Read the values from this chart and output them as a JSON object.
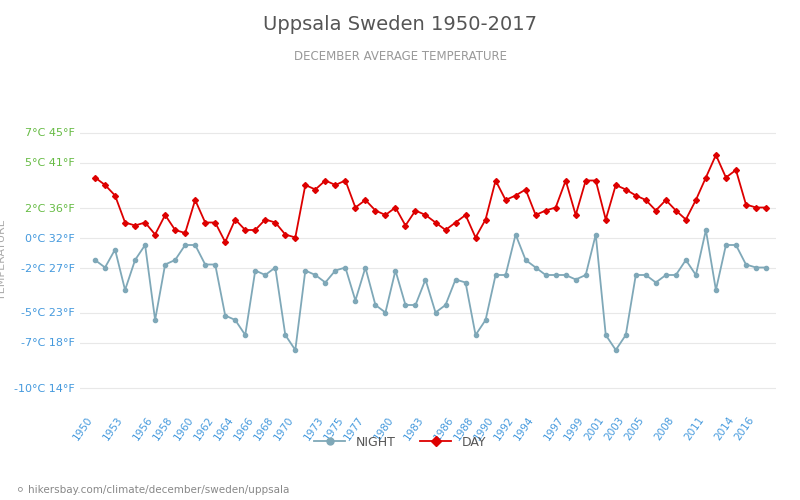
{
  "title": "Uppsala Sweden 1950-2017",
  "subtitle": "DECEMBER AVERAGE TEMPERATURE",
  "ylabel": "TEMPERATURE",
  "url_text": "hikersbay.com/climate/december/sweden/uppsala",
  "legend_night": "NIGHT",
  "legend_day": "DAY",
  "years": [
    1950,
    1951,
    1952,
    1953,
    1954,
    1955,
    1956,
    1957,
    1958,
    1959,
    1960,
    1961,
    1962,
    1963,
    1964,
    1965,
    1966,
    1967,
    1968,
    1969,
    1970,
    1971,
    1972,
    1973,
    1974,
    1975,
    1976,
    1977,
    1978,
    1979,
    1980,
    1981,
    1982,
    1983,
    1984,
    1985,
    1986,
    1987,
    1988,
    1989,
    1990,
    1991,
    1992,
    1993,
    1994,
    1995,
    1996,
    1997,
    1998,
    1999,
    2000,
    2001,
    2002,
    2003,
    2004,
    2005,
    2006,
    2007,
    2008,
    2009,
    2010,
    2011,
    2012,
    2013,
    2014,
    2015,
    2016,
    2017
  ],
  "day_temps": [
    4.0,
    3.5,
    2.8,
    1.0,
    0.8,
    1.0,
    0.2,
    1.5,
    0.5,
    0.3,
    2.5,
    1.0,
    1.0,
    -0.3,
    1.2,
    0.5,
    0.5,
    1.2,
    1.0,
    0.2,
    0.0,
    3.5,
    3.2,
    3.8,
    3.5,
    3.8,
    2.0,
    2.5,
    1.8,
    1.5,
    2.0,
    0.8,
    1.8,
    1.5,
    1.0,
    0.5,
    1.0,
    1.5,
    0.0,
    1.2,
    3.8,
    2.5,
    2.8,
    3.2,
    1.5,
    1.8,
    2.0,
    3.8,
    1.5,
    3.8,
    3.8,
    1.2,
    3.5,
    3.2,
    2.8,
    2.5,
    1.8,
    2.5,
    1.8,
    1.2,
    2.5,
    4.0,
    5.5,
    4.0,
    4.5,
    2.2,
    2.0,
    2.0
  ],
  "night_temps": [
    -1.5,
    -2.0,
    -0.8,
    -3.5,
    -1.5,
    -0.5,
    -5.5,
    -1.8,
    -1.5,
    -0.5,
    -0.5,
    -1.8,
    -1.8,
    -5.2,
    -5.5,
    -6.5,
    -2.2,
    -2.5,
    -2.0,
    -6.5,
    -7.5,
    -2.2,
    -2.5,
    -3.0,
    -2.2,
    -2.0,
    -4.2,
    -2.0,
    -4.5,
    -5.0,
    -2.2,
    -4.5,
    -4.5,
    -2.8,
    -5.0,
    -4.5,
    -2.8,
    -3.0,
    -6.5,
    -5.5,
    -2.5,
    -2.5,
    0.2,
    -1.5,
    -2.0,
    -2.5,
    -2.5,
    -2.5,
    -2.8,
    -2.5,
    0.2,
    -6.5,
    -7.5,
    -6.5,
    -2.5,
    -2.5,
    -3.0,
    -2.5,
    -2.5,
    -1.5,
    -2.5,
    0.5,
    -3.5,
    -0.5,
    -0.5,
    -1.8,
    -2.0,
    -2.0
  ],
  "yticks_c": [
    7,
    5,
    2,
    0,
    -2,
    -5,
    -7,
    -10
  ],
  "yticks_f": [
    45,
    41,
    36,
    32,
    27,
    23,
    18,
    14
  ],
  "ylim": [
    -11.5,
    8.5
  ],
  "xtick_years": [
    1950,
    1953,
    1956,
    1958,
    1960,
    1962,
    1964,
    1966,
    1968,
    1970,
    1973,
    1975,
    1977,
    1980,
    1983,
    1986,
    1988,
    1990,
    1992,
    1994,
    1997,
    1999,
    2001,
    2003,
    2005,
    2008,
    2011,
    2014,
    2016
  ],
  "xlim": [
    1948.5,
    2018
  ],
  "day_color": "#dd0000",
  "night_color": "#7fa8b8",
  "title_color": "#555555",
  "subtitle_color": "#999999",
  "ylabel_color": "#aaaaaa",
  "tick_color_green": "#66bb44",
  "tick_color_blue": "#4499dd",
  "grid_color": "#e8e8e8",
  "bg_color": "#ffffff",
  "url_color": "#888888",
  "url_icon_color": "#ffaa00"
}
